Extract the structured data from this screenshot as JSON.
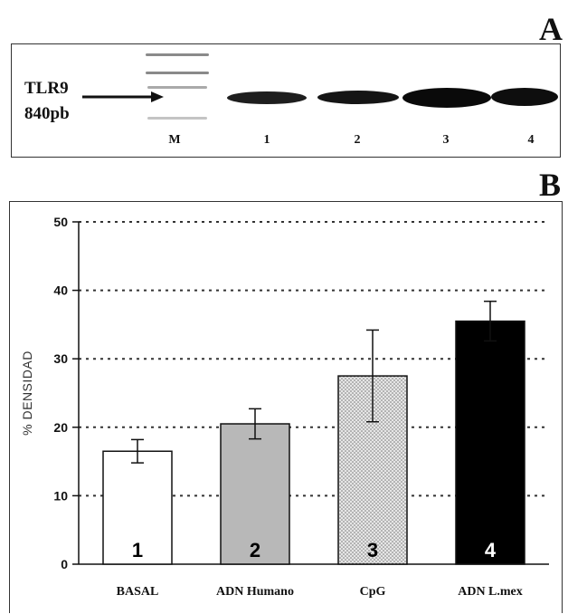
{
  "panel_a": {
    "letter": "A",
    "labels": [
      "TLR9",
      "840pb"
    ],
    "lanes": [
      "M",
      "1",
      "2",
      "3",
      "4"
    ]
  },
  "panel_b": {
    "letter": "B"
  },
  "colors": {
    "bar_basal": "#ffffff",
    "bar_adn_humano": "#b8b8b8",
    "bar_cpg": "#d9d9d9",
    "bar_adn_lmex": "#000000",
    "axis": "#111111",
    "grid": "#333333"
  },
  "chart_data": {
    "type": "bar",
    "categories": [
      "BASAL",
      "ADN Humano",
      "CpG",
      "ADN L.mex"
    ],
    "values": [
      16.5,
      20.5,
      27.5,
      35.5
    ],
    "error": [
      1.7,
      2.2,
      6.7,
      2.9
    ],
    "bar_numbers": [
      "1",
      "2",
      "3",
      "4"
    ],
    "ylabel": "% DENSIDAD",
    "xlabel": "",
    "yticks": [
      0,
      10,
      20,
      30,
      40,
      50
    ],
    "ylim": [
      0,
      50
    ],
    "grid": true,
    "grid_style": "dotted horizontal"
  }
}
